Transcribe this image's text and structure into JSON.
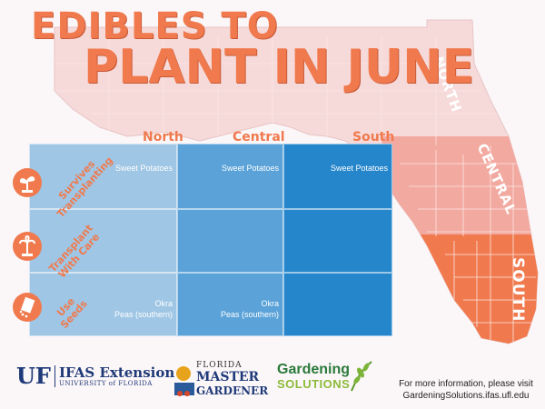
{
  "title": {
    "line1": "EDIBLES TO",
    "line2": "PLANT IN JUNE"
  },
  "columns": [
    "North",
    "Central",
    "South"
  ],
  "rows": [
    {
      "label_lines": [
        "Survives",
        "Transplanting"
      ],
      "icon": "sprout-icon",
      "cells": [
        "Sweet Potatoes",
        "Sweet Potatoes",
        "Sweet Potatoes"
      ]
    },
    {
      "label_lines": [
        "Transplant",
        "With Care"
      ],
      "icon": "palm-tree-icon",
      "cells": [
        "",
        "",
        ""
      ]
    },
    {
      "label_lines": [
        "Use",
        "Seeds"
      ],
      "icon": "seed-packet-icon",
      "cells": [
        "Okra\nPeas (southern)",
        "Okra\nPeas (southern)",
        ""
      ]
    }
  ],
  "map_regions": {
    "north": "NORTH",
    "central": "CENTRAL",
    "south": "SOUTH"
  },
  "footer": {
    "uf_mark": "UF",
    "ifas": "IFAS Extension",
    "university": "UNIVERSITY of FLORIDA",
    "master_gardener": {
      "line1": "FLORIDA",
      "line2": "MASTER",
      "line3": "GARDENER"
    },
    "gardening_solutions": {
      "line1": "Gardening",
      "line2": "SOLUTIONS"
    },
    "info_line1": "For more information, please visit",
    "info_line2": "GardeningSolutions.ifas.ufl.edu"
  },
  "colors": {
    "accent": "#f07a4e",
    "north_cell": "#9fc6e4",
    "central_cell": "#5aa2d8",
    "south_cell": "#2686cc"
  }
}
